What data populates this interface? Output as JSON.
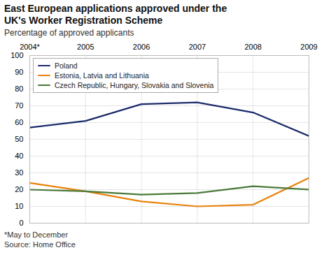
{
  "chart_data": {
    "type": "line",
    "title": "East European applications approved under the\nUK's Worker Registration Scheme",
    "subtitle": "Percentage of approved applicants",
    "annotations": [
      "*May to December",
      "Source: Home Office"
    ],
    "x": [
      2004,
      2005,
      2006,
      2007,
      2008,
      2009
    ],
    "series": [
      {
        "name": "Poland",
        "color": "#1b2a6b",
        "values": [
          57,
          61,
          71,
          72,
          66,
          52
        ]
      },
      {
        "name": "Estonia, Latvia and Lithuania",
        "color": "#e8820c",
        "values": [
          24,
          19,
          13,
          10,
          11,
          27
        ]
      },
      {
        "name": "Czech Republic, Hungary, Slovakia and Slovenia",
        "color": "#4a7a3a",
        "values": [
          20,
          19,
          17,
          18,
          22,
          20
        ]
      }
    ],
    "xlim": [
      2004,
      2009
    ],
    "xticks": [
      {
        "value": 2004,
        "label": "2004*"
      },
      {
        "value": 2005,
        "label": "2005"
      },
      {
        "value": 2006,
        "label": "2006"
      },
      {
        "value": 2007,
        "label": "2007"
      },
      {
        "value": 2008,
        "label": "2008"
      },
      {
        "value": 2009,
        "label": "2009"
      }
    ],
    "ylim": [
      0,
      100
    ],
    "yticks": [
      0,
      10,
      20,
      30,
      40,
      50,
      60,
      70,
      80,
      90,
      100
    ],
    "grid": true,
    "legend": "upper left"
  }
}
